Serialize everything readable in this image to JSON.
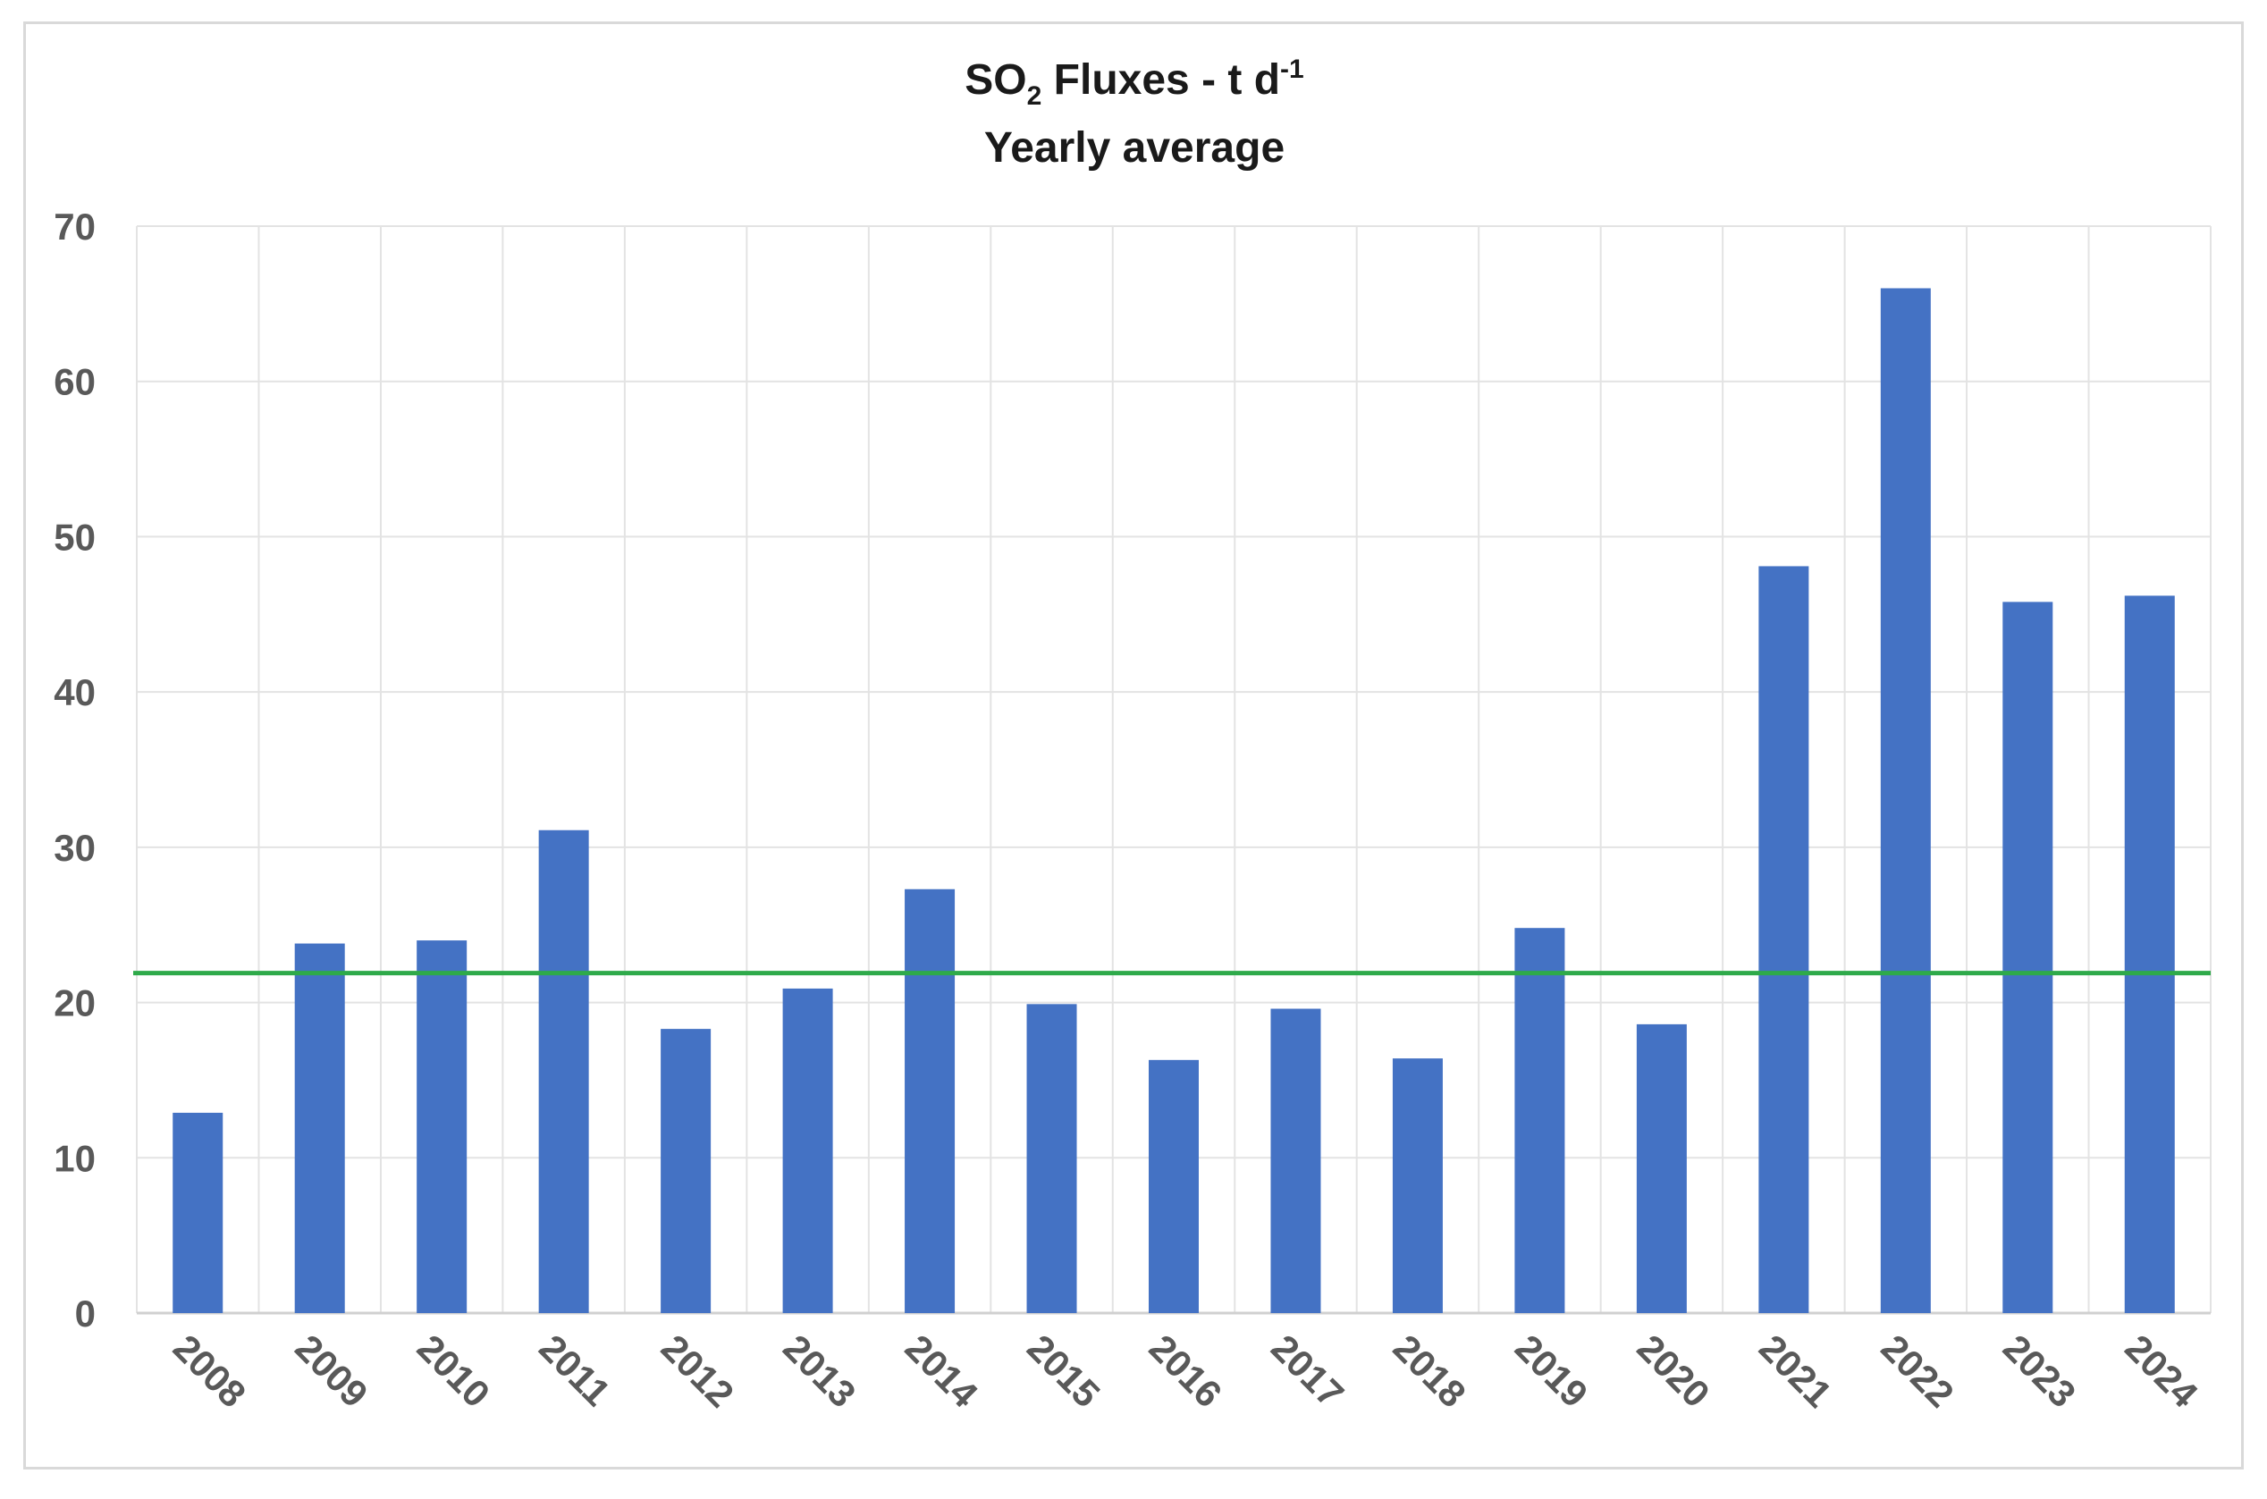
{
  "chart_data": {
    "type": "bar",
    "title": {
      "main_prefix": "SO",
      "main_subscript": "2",
      "main_middle": " Fluxes - t d",
      "main_superscript": "-1",
      "subtitle": "Yearly average"
    },
    "categories": [
      "2008",
      "2009",
      "2010",
      "2011",
      "2012",
      "2013",
      "2014",
      "2015",
      "2016",
      "2017",
      "2018",
      "2019",
      "2020",
      "2021",
      "2022",
      "2023",
      "2024"
    ],
    "series": [
      {
        "values": [
          12.9,
          23.8,
          24.0,
          31.1,
          18.3,
          20.9,
          27.3,
          19.9,
          16.3,
          19.6,
          16.4,
          24.8,
          18.6,
          48.1,
          66.0,
          45.8,
          46.2
        ],
        "color": "#4472c4"
      }
    ],
    "reference_line": {
      "value": 21.9,
      "color": "#2eaa4a"
    },
    "ylim": [
      0,
      70
    ],
    "yticks": [
      0,
      10,
      20,
      30,
      40,
      50,
      60,
      70
    ],
    "xlabel": "",
    "ylabel": "",
    "grid": true,
    "legend": "none"
  }
}
